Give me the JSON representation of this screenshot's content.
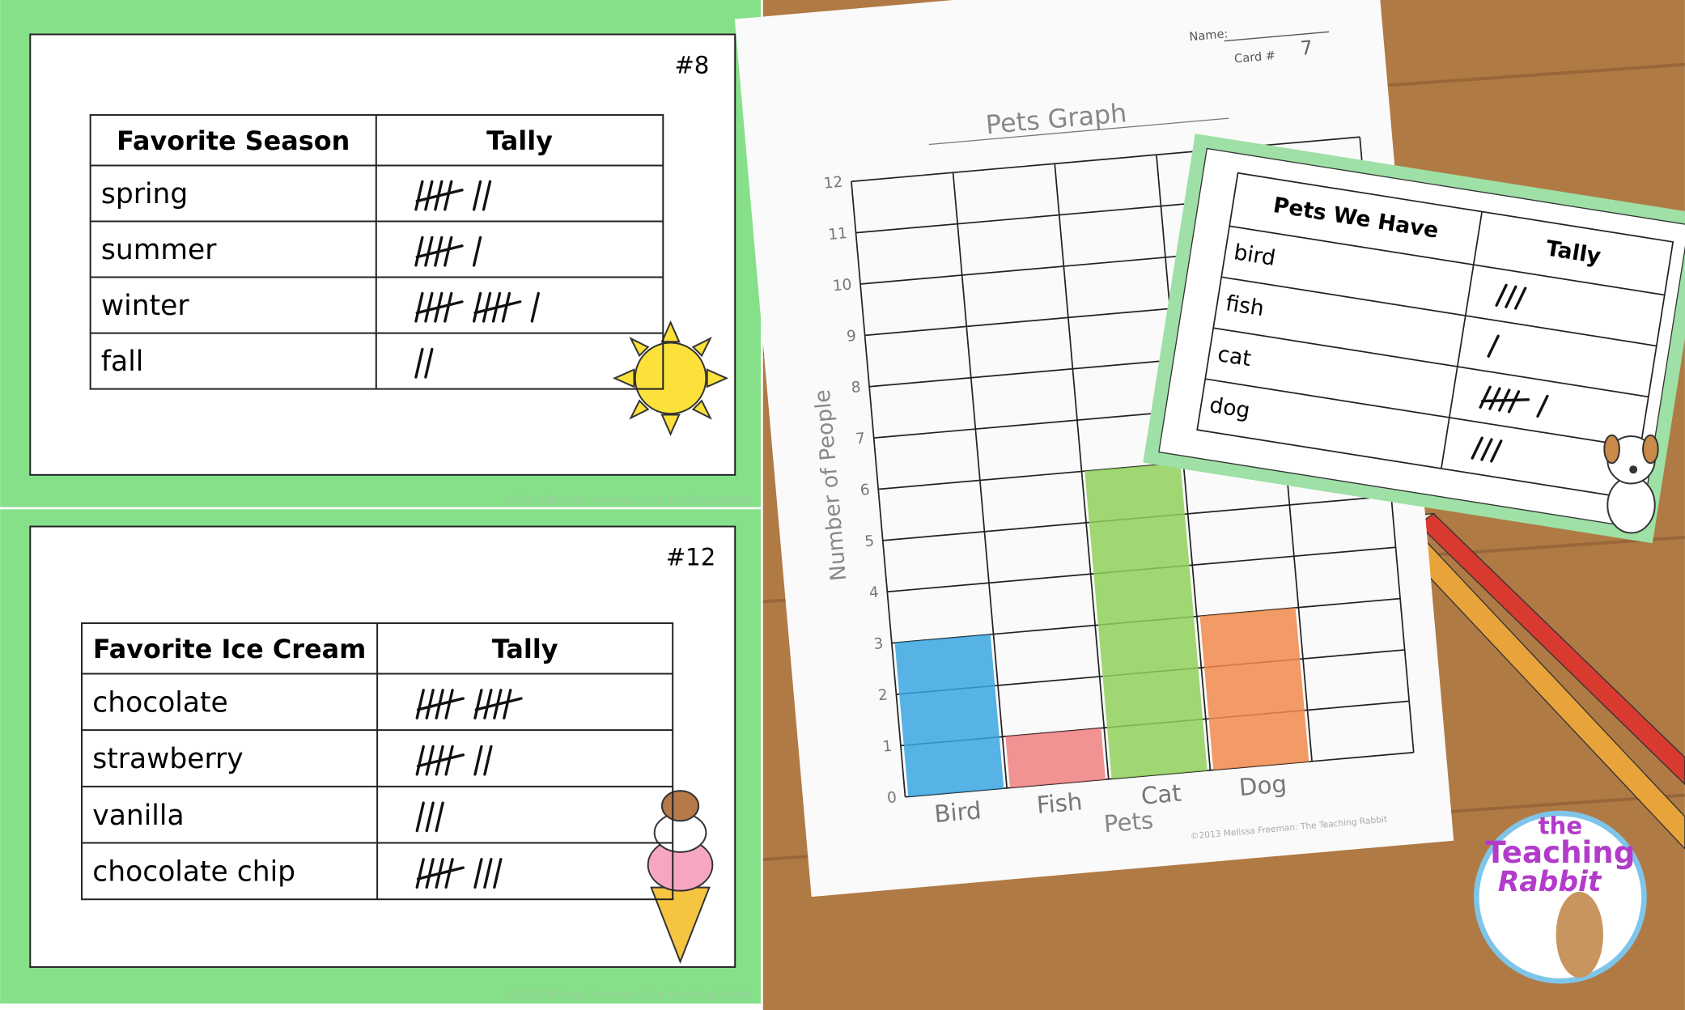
{
  "cards": [
    {
      "number": "#8",
      "table": {
        "header": [
          "Favorite Season",
          "Tally"
        ],
        "rows": [
          {
            "label": "spring",
            "tally": 7
          },
          {
            "label": "summer",
            "tally": 6
          },
          {
            "label": "winter",
            "tally": 11
          },
          {
            "label": "fall",
            "tally": 2
          }
        ]
      }
    },
    {
      "number": "#12",
      "table": {
        "header": [
          "Favorite Ice Cream",
          "Tally"
        ],
        "rows": [
          {
            "label": "chocolate",
            "tally": 10
          },
          {
            "label": "strawberry",
            "tally": 7
          },
          {
            "label": "vanilla",
            "tally": 3
          },
          {
            "label": "chocolate chip",
            "tally": 8
          }
        ]
      }
    }
  ],
  "copyright": "©2013 Melissa Freeman: The Teaching Rabbit",
  "worksheet": {
    "name_label": "Name:",
    "card_label": "Card #",
    "card_number": "7"
  },
  "chart_data": {
    "type": "bar",
    "title": "Pets Graph",
    "x_label": "Pets",
    "y_label": "Number of People",
    "categories": [
      "Bird",
      "Fish",
      "Cat",
      "Dog"
    ],
    "values": [
      3,
      1,
      6,
      3
    ],
    "colors": [
      "#3aa6e0",
      "#f08080",
      "#8fd05a",
      "#f08a4b"
    ],
    "ylim": [
      0,
      12
    ],
    "yticks": [
      0,
      1,
      2,
      3,
      4,
      5,
      6,
      7,
      8,
      9,
      10,
      11,
      12
    ],
    "grid": true
  },
  "pets_card": {
    "header": [
      "Pets We Have",
      "Tally"
    ],
    "rows": [
      {
        "label": "bird",
        "tally": 3
      },
      {
        "label": "fish",
        "tally": 1
      },
      {
        "label": "cat",
        "tally": 6
      },
      {
        "label": "dog",
        "tally": 3
      }
    ]
  },
  "logo": [
    "the",
    "Teaching",
    "Rabbit"
  ]
}
